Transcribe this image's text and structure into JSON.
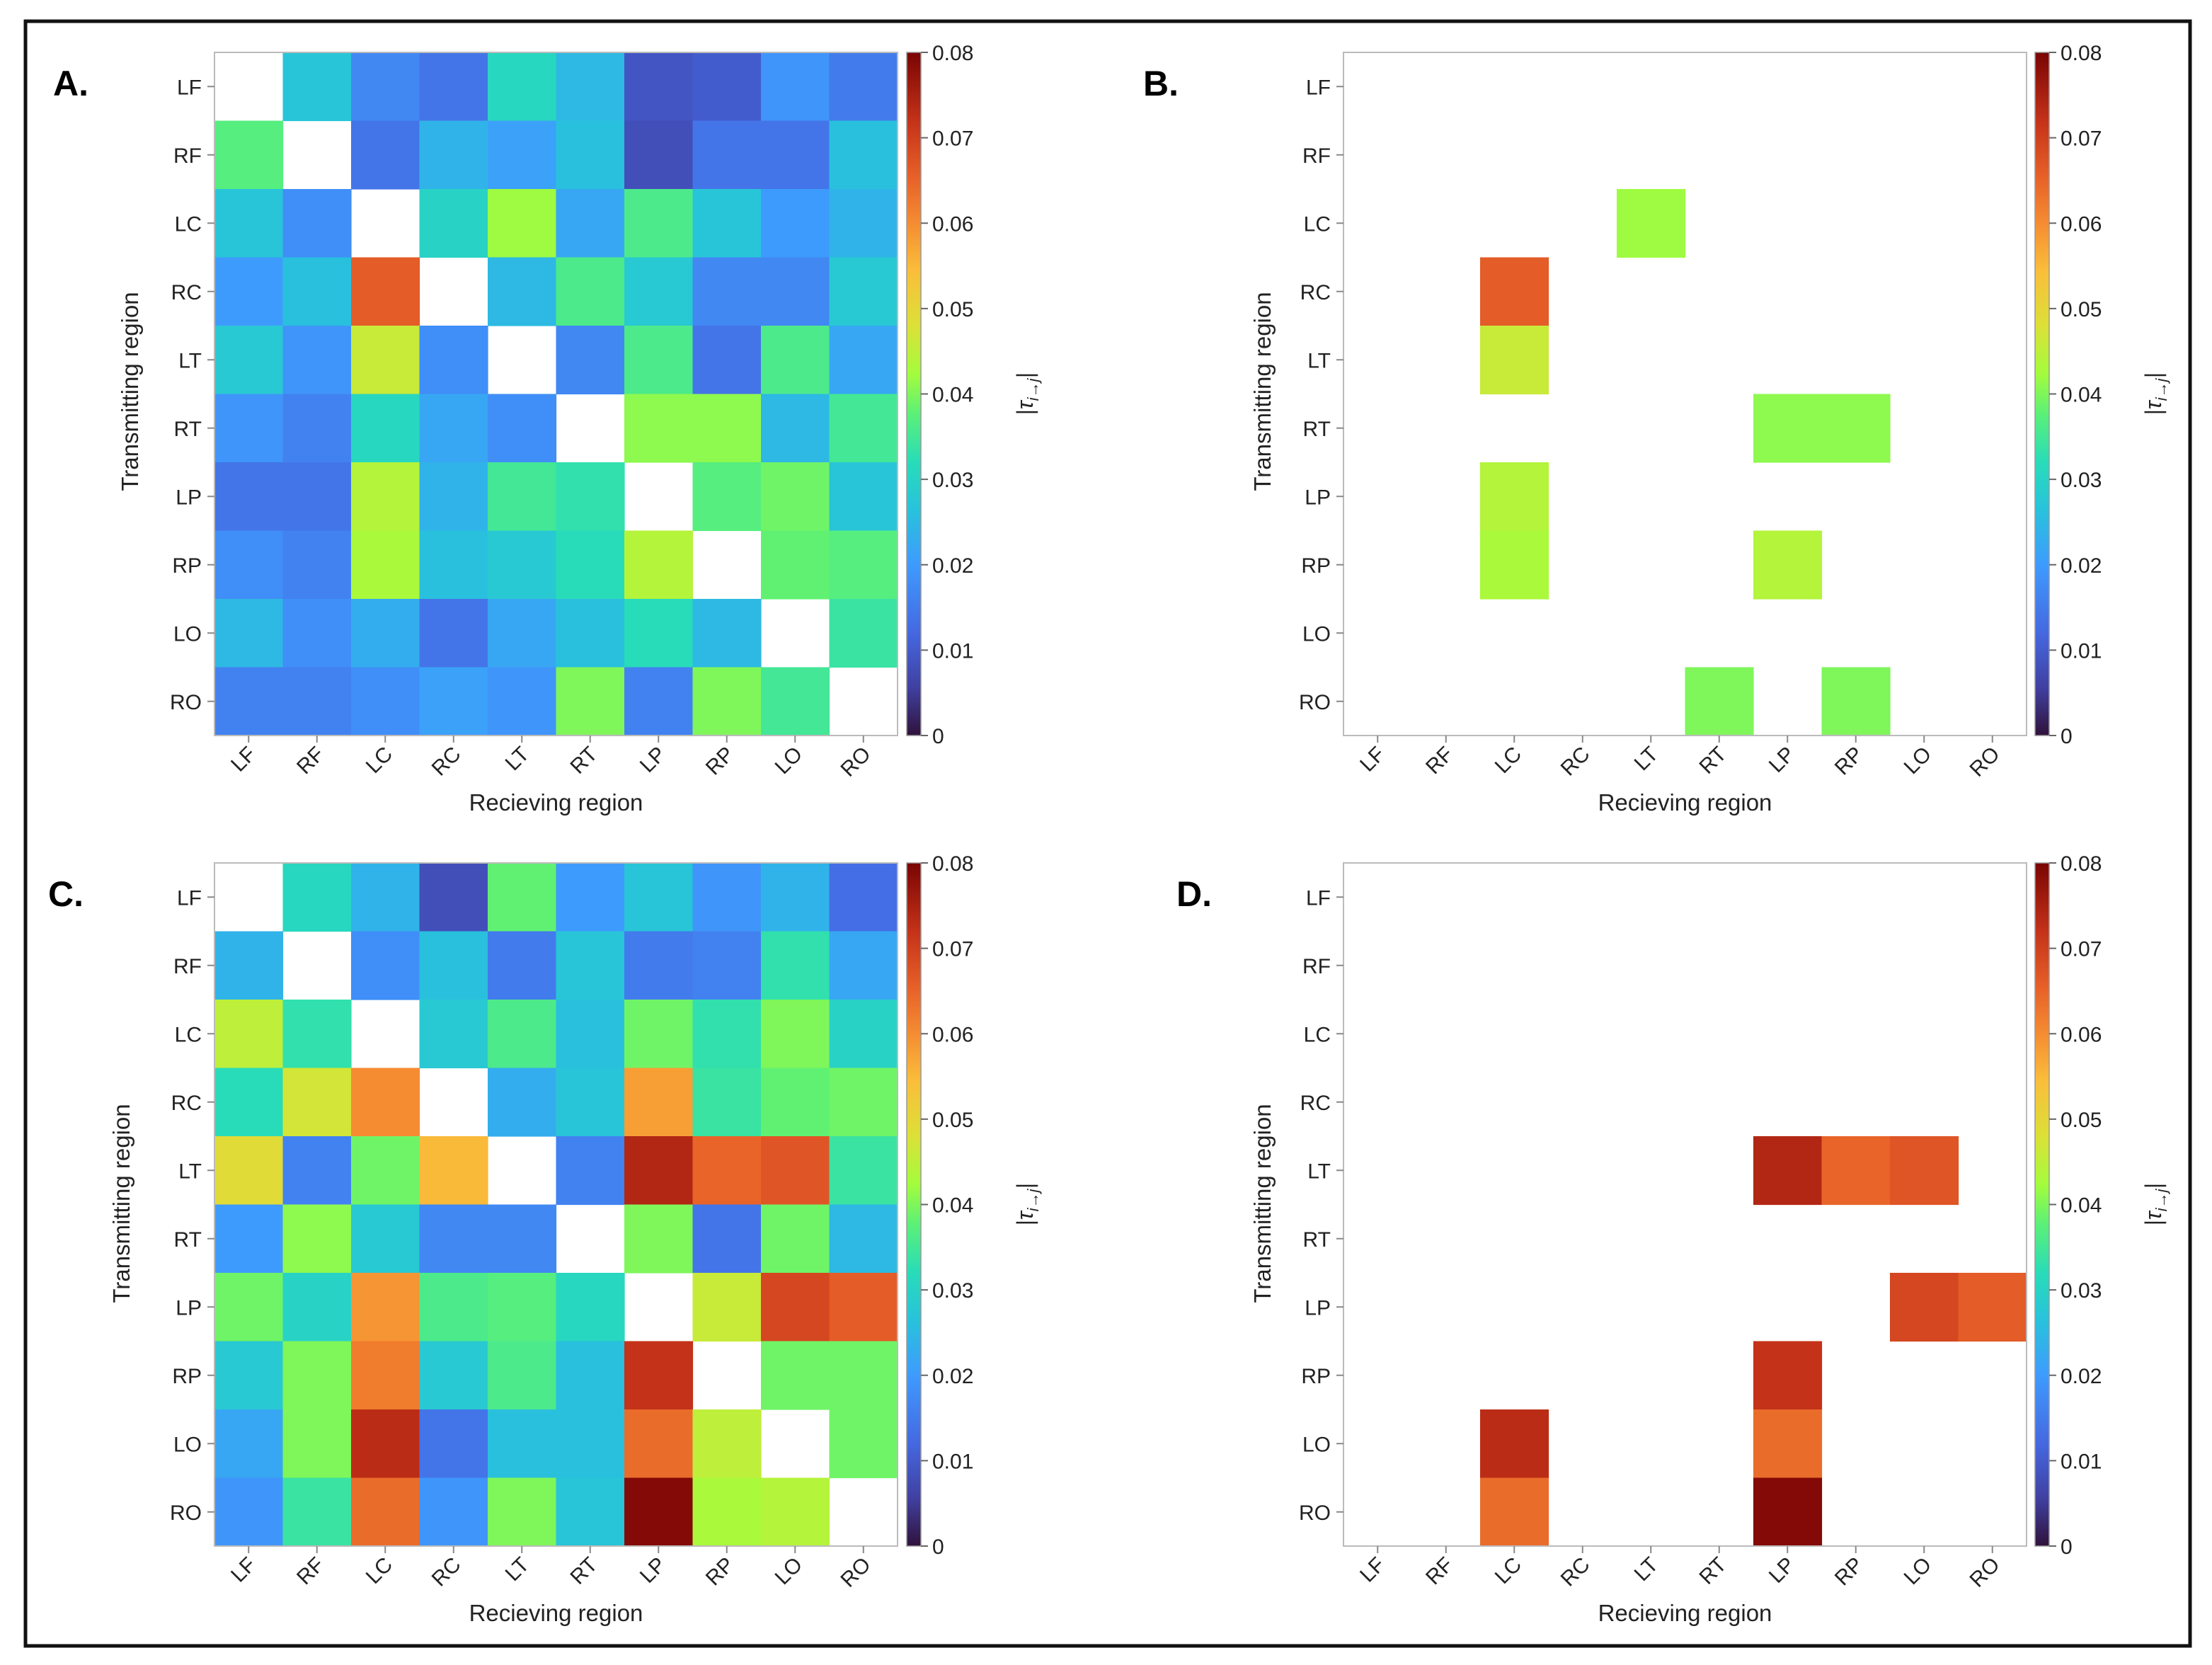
{
  "regions": [
    "LF",
    "RF",
    "LC",
    "RC",
    "LT",
    "RT",
    "LP",
    "RP",
    "LO",
    "RO"
  ],
  "colorbar": {
    "range": [
      0,
      0.08
    ],
    "ticks": [
      "0",
      "0.01",
      "0.02",
      "0.03",
      "0.04",
      "0.05",
      "0.06",
      "0.07",
      "0.08"
    ],
    "label": "|τ",
    "label_sub": "i→j",
    "label_close": "|"
  },
  "chart_data": [
    {
      "type": "heatmap",
      "panel_label": "A.",
      "xlabel": "Recieving region",
      "ylabel": "Transmitting region",
      "values": [
        [
          null,
          0.027,
          0.017,
          0.014,
          0.031,
          0.025,
          0.009,
          0.01,
          0.019,
          0.015
        ],
        [
          0.037,
          null,
          0.014,
          0.024,
          0.021,
          0.026,
          0.008,
          0.014,
          0.014,
          0.026
        ],
        [
          0.027,
          0.018,
          null,
          0.03,
          0.042,
          0.022,
          0.036,
          0.027,
          0.02,
          0.024
        ],
        [
          0.02,
          0.026,
          0.066,
          null,
          0.025,
          0.036,
          0.028,
          0.017,
          0.017,
          0.028
        ],
        [
          0.028,
          0.019,
          0.046,
          0.018,
          null,
          0.017,
          0.036,
          0.014,
          0.036,
          0.022
        ],
        [
          0.019,
          0.016,
          0.031,
          0.022,
          0.018,
          null,
          0.041,
          0.041,
          0.025,
          0.035
        ],
        [
          0.014,
          0.014,
          0.044,
          0.024,
          0.035,
          0.033,
          null,
          0.037,
          0.039,
          0.027
        ],
        [
          0.018,
          0.016,
          0.043,
          0.026,
          0.028,
          0.032,
          0.044,
          null,
          0.038,
          0.037
        ],
        [
          0.025,
          0.018,
          0.023,
          0.014,
          0.022,
          0.026,
          0.032,
          0.025,
          null,
          0.034
        ],
        [
          0.016,
          0.016,
          0.018,
          0.021,
          0.019,
          0.04,
          0.016,
          0.04,
          0.035,
          null
        ]
      ]
    },
    {
      "type": "heatmap",
      "panel_label": "B.",
      "xlabel": "Recieving region",
      "ylabel": "Transmitting region",
      "values": [
        [
          null,
          null,
          null,
          null,
          null,
          null,
          null,
          null,
          null,
          null
        ],
        [
          null,
          null,
          null,
          null,
          null,
          null,
          null,
          null,
          null,
          null
        ],
        [
          null,
          null,
          null,
          null,
          0.042,
          null,
          null,
          null,
          null,
          null
        ],
        [
          null,
          null,
          0.066,
          null,
          null,
          null,
          null,
          null,
          null,
          null
        ],
        [
          null,
          null,
          0.046,
          null,
          null,
          null,
          null,
          null,
          null,
          null
        ],
        [
          null,
          null,
          null,
          null,
          null,
          null,
          0.041,
          0.041,
          null,
          null
        ],
        [
          null,
          null,
          0.044,
          null,
          null,
          null,
          null,
          null,
          null,
          null
        ],
        [
          null,
          null,
          0.043,
          null,
          null,
          null,
          0.044,
          null,
          null,
          null
        ],
        [
          null,
          null,
          null,
          null,
          null,
          null,
          null,
          null,
          null,
          null
        ],
        [
          null,
          null,
          null,
          null,
          null,
          0.04,
          null,
          0.04,
          null,
          null
        ]
      ]
    },
    {
      "type": "heatmap",
      "panel_label": "C.",
      "xlabel": "Recieving region",
      "ylabel": "Transmitting region",
      "values": [
        [
          null,
          0.031,
          0.024,
          0.008,
          0.038,
          0.02,
          0.027,
          0.019,
          0.024,
          0.013
        ],
        [
          0.024,
          null,
          0.018,
          0.026,
          0.015,
          0.027,
          0.015,
          0.016,
          0.033,
          0.022
        ],
        [
          0.045,
          0.033,
          null,
          0.028,
          0.036,
          0.026,
          0.039,
          0.033,
          0.04,
          0.03
        ],
        [
          0.032,
          0.047,
          0.06,
          null,
          0.023,
          0.027,
          0.058,
          0.034,
          0.038,
          0.039
        ],
        [
          0.049,
          0.016,
          0.039,
          0.055,
          null,
          0.016,
          0.074,
          0.065,
          0.067,
          0.034
        ],
        [
          0.02,
          0.041,
          0.028,
          0.017,
          0.017,
          null,
          0.04,
          0.014,
          0.039,
          0.025
        ],
        [
          0.039,
          0.03,
          0.059,
          0.036,
          0.037,
          0.031,
          null,
          0.046,
          0.069,
          0.066
        ],
        [
          0.028,
          0.04,
          0.062,
          0.028,
          0.036,
          0.026,
          0.072,
          null,
          0.039,
          0.039
        ],
        [
          0.022,
          0.04,
          0.073,
          0.014,
          0.026,
          0.026,
          0.064,
          0.045,
          null,
          0.039
        ],
        [
          0.019,
          0.034,
          0.064,
          0.019,
          0.04,
          0.027,
          0.079,
          0.043,
          0.044,
          null
        ]
      ]
    },
    {
      "type": "heatmap",
      "panel_label": "D.",
      "xlabel": "Recieving region",
      "ylabel": "Transmitting region",
      "values": [
        [
          null,
          null,
          null,
          null,
          null,
          null,
          null,
          null,
          null,
          null
        ],
        [
          null,
          null,
          null,
          null,
          null,
          null,
          null,
          null,
          null,
          null
        ],
        [
          null,
          null,
          null,
          null,
          null,
          null,
          null,
          null,
          null,
          null
        ],
        [
          null,
          null,
          null,
          null,
          null,
          null,
          null,
          null,
          null,
          null
        ],
        [
          null,
          null,
          null,
          null,
          null,
          null,
          0.074,
          0.065,
          0.067,
          null
        ],
        [
          null,
          null,
          null,
          null,
          null,
          null,
          null,
          null,
          null,
          null
        ],
        [
          null,
          null,
          null,
          null,
          null,
          null,
          null,
          null,
          0.069,
          0.066
        ],
        [
          null,
          null,
          null,
          null,
          null,
          null,
          0.072,
          null,
          null,
          null
        ],
        [
          null,
          null,
          0.073,
          null,
          null,
          null,
          0.064,
          null,
          null,
          null
        ],
        [
          null,
          null,
          0.064,
          null,
          null,
          null,
          0.079,
          null,
          null,
          null
        ]
      ]
    }
  ]
}
